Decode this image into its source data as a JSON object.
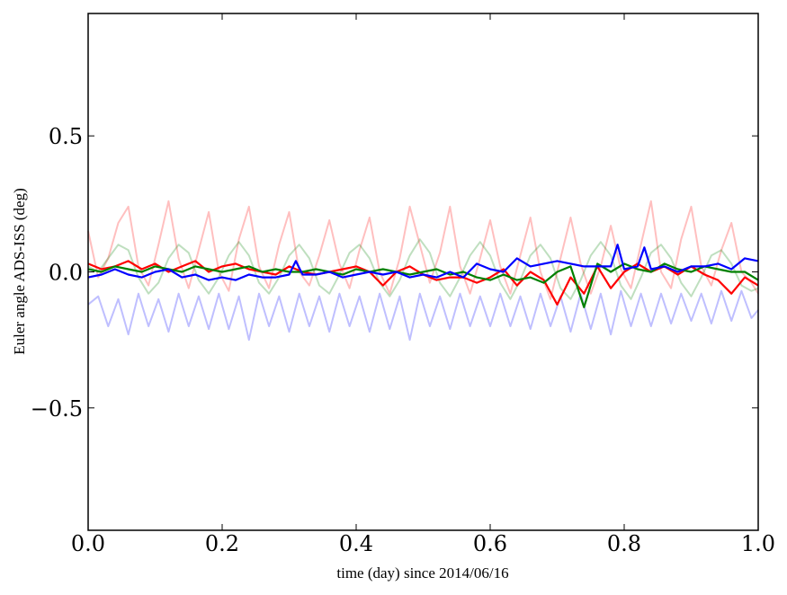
{
  "chart_data": {
    "type": "line",
    "xlabel": "time (day) since 2014/06/16",
    "ylabel": "Euler angle ADS-ISS (deg)",
    "xlim": [
      0.0,
      1.0
    ],
    "ylim": [
      -0.95,
      0.95
    ],
    "grid": false,
    "legend": "none",
    "xticks": [
      0.0,
      0.2,
      0.4,
      0.6,
      0.8,
      1.0
    ],
    "xtick_labels": [
      "0.0",
      "0.2",
      "0.4",
      "0.6",
      "0.8",
      "1.0"
    ],
    "yticks": [
      0.5,
      0.0,
      -0.5
    ],
    "ytick_labels": [
      "0.5",
      "0.0",
      "−0.5"
    ],
    "series": [
      {
        "color": "#ff0000",
        "opacity": 0.25,
        "x": [
          0.0,
          0.015,
          0.03,
          0.045,
          0.06,
          0.075,
          0.09,
          0.105,
          0.12,
          0.135,
          0.15,
          0.165,
          0.18,
          0.195,
          0.21,
          0.225,
          0.24,
          0.255,
          0.27,
          0.285,
          0.3,
          0.315,
          0.33,
          0.345,
          0.36,
          0.375,
          0.39,
          0.405,
          0.42,
          0.435,
          0.45,
          0.465,
          0.48,
          0.495,
          0.51,
          0.525,
          0.54,
          0.555,
          0.57,
          0.585,
          0.6,
          0.615,
          0.63,
          0.645,
          0.66,
          0.675,
          0.69,
          0.705,
          0.72,
          0.735,
          0.75,
          0.765,
          0.78,
          0.795,
          0.81,
          0.825,
          0.84,
          0.855,
          0.87,
          0.885,
          0.9,
          0.915,
          0.93,
          0.945,
          0.96,
          0.975,
          0.99,
          1.0
        ],
        "y": [
          0.15,
          -0.02,
          0.05,
          0.18,
          0.24,
          0.02,
          -0.05,
          0.1,
          0.26,
          0.05,
          -0.06,
          0.08,
          0.22,
          0.0,
          -0.07,
          0.12,
          0.24,
          0.02,
          -0.06,
          0.1,
          0.22,
          0.0,
          -0.05,
          0.06,
          0.19,
          0.03,
          -0.06,
          0.08,
          0.2,
          0.0,
          -0.08,
          0.05,
          0.24,
          0.1,
          -0.04,
          0.07,
          0.24,
          0.02,
          -0.08,
          0.05,
          0.19,
          0.02,
          -0.08,
          0.06,
          0.2,
          0.0,
          -0.1,
          0.05,
          0.2,
          0.03,
          -0.08,
          0.02,
          0.17,
          0.01,
          -0.06,
          0.1,
          0.26,
          0.0,
          -0.06,
          0.12,
          0.24,
          0.02,
          -0.05,
          0.08,
          0.18,
          0.0,
          -0.04,
          -0.08
        ]
      },
      {
        "color": "#008000",
        "opacity": 0.25,
        "x": [
          0.0,
          0.015,
          0.03,
          0.045,
          0.06,
          0.075,
          0.09,
          0.105,
          0.12,
          0.135,
          0.15,
          0.165,
          0.18,
          0.195,
          0.21,
          0.225,
          0.24,
          0.255,
          0.27,
          0.285,
          0.3,
          0.315,
          0.33,
          0.345,
          0.36,
          0.375,
          0.39,
          0.405,
          0.42,
          0.435,
          0.45,
          0.465,
          0.48,
          0.495,
          0.51,
          0.525,
          0.54,
          0.555,
          0.57,
          0.585,
          0.6,
          0.615,
          0.63,
          0.645,
          0.66,
          0.675,
          0.69,
          0.705,
          0.72,
          0.735,
          0.75,
          0.765,
          0.78,
          0.795,
          0.81,
          0.825,
          0.84,
          0.855,
          0.87,
          0.885,
          0.9,
          0.915,
          0.93,
          0.945,
          0.96,
          0.975,
          0.99,
          1.0
        ],
        "y": [
          0.02,
          0.0,
          0.05,
          0.1,
          0.08,
          -0.02,
          -0.08,
          -0.04,
          0.05,
          0.1,
          0.07,
          -0.03,
          -0.08,
          -0.02,
          0.06,
          0.11,
          0.06,
          -0.04,
          -0.08,
          -0.02,
          0.06,
          0.1,
          0.05,
          -0.05,
          -0.08,
          -0.01,
          0.07,
          0.1,
          0.05,
          -0.04,
          -0.09,
          -0.03,
          0.06,
          0.12,
          0.07,
          -0.04,
          -0.09,
          -0.02,
          0.06,
          0.11,
          0.06,
          -0.04,
          -0.1,
          -0.03,
          0.06,
          0.1,
          0.05,
          -0.06,
          -0.1,
          -0.03,
          0.06,
          0.11,
          0.06,
          -0.05,
          -0.1,
          -0.02,
          0.07,
          0.1,
          0.05,
          -0.04,
          -0.09,
          -0.02,
          0.06,
          0.08,
          0.03,
          -0.05,
          -0.07,
          -0.06
        ]
      },
      {
        "color": "#0000ff",
        "opacity": 0.25,
        "x": [
          0.0,
          0.015,
          0.03,
          0.045,
          0.06,
          0.075,
          0.09,
          0.105,
          0.12,
          0.135,
          0.15,
          0.165,
          0.18,
          0.195,
          0.21,
          0.225,
          0.24,
          0.255,
          0.27,
          0.285,
          0.3,
          0.315,
          0.33,
          0.345,
          0.36,
          0.375,
          0.39,
          0.405,
          0.42,
          0.435,
          0.45,
          0.465,
          0.48,
          0.495,
          0.51,
          0.525,
          0.54,
          0.555,
          0.57,
          0.585,
          0.6,
          0.615,
          0.63,
          0.645,
          0.66,
          0.675,
          0.69,
          0.705,
          0.72,
          0.735,
          0.75,
          0.765,
          0.78,
          0.795,
          0.81,
          0.825,
          0.84,
          0.855,
          0.87,
          0.885,
          0.9,
          0.915,
          0.93,
          0.945,
          0.96,
          0.975,
          0.99,
          1.0
        ],
        "y": [
          -0.12,
          -0.09,
          -0.2,
          -0.1,
          -0.23,
          -0.08,
          -0.2,
          -0.1,
          -0.22,
          -0.08,
          -0.2,
          -0.09,
          -0.21,
          -0.08,
          -0.21,
          -0.09,
          -0.25,
          -0.08,
          -0.2,
          -0.09,
          -0.22,
          -0.08,
          -0.2,
          -0.09,
          -0.22,
          -0.08,
          -0.2,
          -0.09,
          -0.22,
          -0.08,
          -0.21,
          -0.09,
          -0.25,
          -0.08,
          -0.2,
          -0.09,
          -0.21,
          -0.08,
          -0.2,
          -0.09,
          -0.2,
          -0.08,
          -0.2,
          -0.09,
          -0.21,
          -0.08,
          -0.2,
          -0.09,
          -0.22,
          -0.08,
          -0.21,
          -0.08,
          -0.23,
          -0.07,
          -0.2,
          -0.08,
          -0.2,
          -0.08,
          -0.19,
          -0.08,
          -0.18,
          -0.08,
          -0.19,
          -0.07,
          -0.18,
          -0.07,
          -0.17,
          -0.14
        ]
      },
      {
        "color": "#ff0000",
        "opacity": 1,
        "x": [
          0.0,
          0.02,
          0.04,
          0.06,
          0.08,
          0.1,
          0.12,
          0.14,
          0.16,
          0.18,
          0.2,
          0.22,
          0.24,
          0.26,
          0.28,
          0.3,
          0.32,
          0.34,
          0.36,
          0.38,
          0.4,
          0.42,
          0.44,
          0.46,
          0.48,
          0.5,
          0.52,
          0.54,
          0.56,
          0.58,
          0.6,
          0.62,
          0.64,
          0.66,
          0.68,
          0.7,
          0.72,
          0.74,
          0.76,
          0.78,
          0.8,
          0.82,
          0.84,
          0.86,
          0.88,
          0.9,
          0.92,
          0.94,
          0.96,
          0.98,
          1.0
        ],
        "y": [
          0.03,
          0.01,
          0.02,
          0.04,
          0.01,
          0.03,
          0.0,
          0.02,
          0.04,
          0.0,
          0.02,
          0.03,
          0.01,
          0.0,
          -0.01,
          0.02,
          0.0,
          -0.01,
          0.0,
          0.01,
          0.02,
          0.0,
          -0.05,
          0.0,
          0.02,
          -0.01,
          -0.03,
          -0.02,
          -0.02,
          -0.04,
          -0.02,
          0.01,
          -0.05,
          0.0,
          -0.03,
          -0.12,
          -0.02,
          -0.08,
          0.02,
          -0.06,
          0.0,
          0.03,
          0.0,
          0.02,
          -0.01,
          0.02,
          -0.01,
          -0.03,
          -0.08,
          -0.02,
          -0.05
        ]
      },
      {
        "color": "#008000",
        "opacity": 1,
        "x": [
          0.0,
          0.02,
          0.04,
          0.06,
          0.08,
          0.1,
          0.12,
          0.14,
          0.16,
          0.18,
          0.2,
          0.22,
          0.24,
          0.26,
          0.28,
          0.3,
          0.32,
          0.34,
          0.36,
          0.38,
          0.4,
          0.42,
          0.44,
          0.46,
          0.48,
          0.5,
          0.52,
          0.54,
          0.56,
          0.58,
          0.6,
          0.62,
          0.64,
          0.66,
          0.68,
          0.7,
          0.72,
          0.74,
          0.76,
          0.78,
          0.8,
          0.82,
          0.84,
          0.86,
          0.88,
          0.9,
          0.92,
          0.94,
          0.96,
          0.98,
          1.0
        ],
        "y": [
          0.01,
          0.0,
          0.02,
          0.01,
          0.0,
          0.02,
          0.01,
          0.0,
          0.02,
          0.01,
          0.0,
          0.01,
          0.02,
          0.0,
          0.01,
          0.0,
          0.0,
          0.01,
          0.0,
          -0.01,
          0.01,
          0.0,
          0.01,
          0.0,
          -0.01,
          0.0,
          0.01,
          -0.01,
          0.0,
          -0.02,
          -0.03,
          -0.01,
          -0.03,
          -0.02,
          -0.04,
          0.0,
          0.02,
          -0.13,
          0.03,
          0.0,
          0.03,
          0.01,
          0.0,
          0.03,
          0.01,
          0.0,
          0.02,
          0.01,
          0.0,
          0.0,
          -0.03
        ]
      },
      {
        "color": "#0000ff",
        "opacity": 1,
        "x": [
          0.0,
          0.02,
          0.04,
          0.06,
          0.08,
          0.1,
          0.12,
          0.14,
          0.16,
          0.18,
          0.2,
          0.22,
          0.24,
          0.26,
          0.28,
          0.3,
          0.31,
          0.32,
          0.34,
          0.36,
          0.38,
          0.4,
          0.42,
          0.44,
          0.46,
          0.48,
          0.5,
          0.52,
          0.54,
          0.56,
          0.58,
          0.6,
          0.62,
          0.64,
          0.66,
          0.68,
          0.7,
          0.72,
          0.74,
          0.76,
          0.78,
          0.79,
          0.8,
          0.82,
          0.83,
          0.84,
          0.86,
          0.88,
          0.9,
          0.92,
          0.94,
          0.96,
          0.98,
          1.0
        ],
        "y": [
          -0.02,
          -0.01,
          0.01,
          -0.01,
          -0.02,
          0.0,
          0.01,
          -0.02,
          -0.01,
          -0.03,
          -0.02,
          -0.03,
          -0.01,
          -0.02,
          -0.02,
          -0.01,
          0.04,
          -0.01,
          -0.01,
          0.0,
          -0.02,
          -0.01,
          0.0,
          -0.01,
          0.0,
          -0.02,
          -0.01,
          -0.02,
          0.0,
          -0.02,
          0.03,
          0.01,
          0.0,
          0.05,
          0.02,
          0.03,
          0.04,
          0.03,
          0.02,
          0.02,
          0.02,
          0.1,
          0.01,
          0.02,
          0.09,
          0.01,
          0.02,
          0.0,
          0.02,
          0.02,
          0.03,
          0.01,
          0.05,
          0.04
        ]
      }
    ]
  }
}
